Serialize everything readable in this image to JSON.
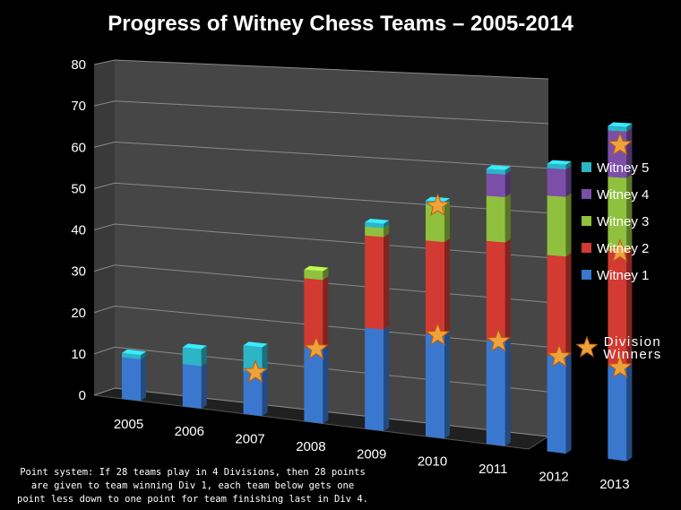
{
  "chart_data": {
    "type": "bar",
    "stacked": true,
    "title": "Progress of Witney Chess Teams – 2005-2014",
    "categories": [
      "2005",
      "2006",
      "2007",
      "2008",
      "2009",
      "2010",
      "2011",
      "2012",
      "2013"
    ],
    "ylim": [
      0,
      80
    ],
    "yticks": [
      0,
      10,
      20,
      30,
      40,
      50,
      60,
      70,
      80
    ],
    "grid": true,
    "legend_position": "right",
    "series": [
      {
        "name": "Witney 1",
        "color": "#3a78cf",
        "values": [
          10,
          10,
          10,
          17,
          23,
          23,
          23,
          21,
          20
        ]
      },
      {
        "name": "Witney 2",
        "color": "#d23a32",
        "values": [
          0,
          0,
          0,
          16,
          21,
          21,
          22,
          22,
          25
        ]
      },
      {
        "name": "Witney 3",
        "color": "#8fc13e",
        "values": [
          0,
          0,
          0,
          2,
          2,
          8,
          10,
          13,
          16
        ]
      },
      {
        "name": "Witney 4",
        "color": "#7b4fa8",
        "values": [
          0,
          0,
          0,
          0,
          0,
          0,
          5,
          6,
          10
        ]
      },
      {
        "name": "Witney 5",
        "color": "#2cb5c6",
        "values": [
          1,
          4,
          6,
          0,
          1,
          1,
          1,
          1,
          1
        ]
      }
    ],
    "division_winners": [
      {
        "category": "2007",
        "value": 10
      },
      {
        "category": "2008",
        "value": 17
      },
      {
        "category": "2010",
        "value": 23
      },
      {
        "category": "2010",
        "value": 52
      },
      {
        "category": "2011",
        "value": 23
      },
      {
        "category": "2012",
        "value": 21
      },
      {
        "category": "2013",
        "value": 20
      },
      {
        "category": "2013",
        "value": 45
      },
      {
        "category": "2013",
        "value": 68
      }
    ],
    "division_winners_label": [
      "Division",
      "Winners"
    ],
    "note": [
      "Point system: If 28 teams play in 4 Divisions, then 28 points",
      "are given to team winning Div 1, each team below gets one",
      "point less down to one point for team finishing last in Div 4."
    ]
  }
}
